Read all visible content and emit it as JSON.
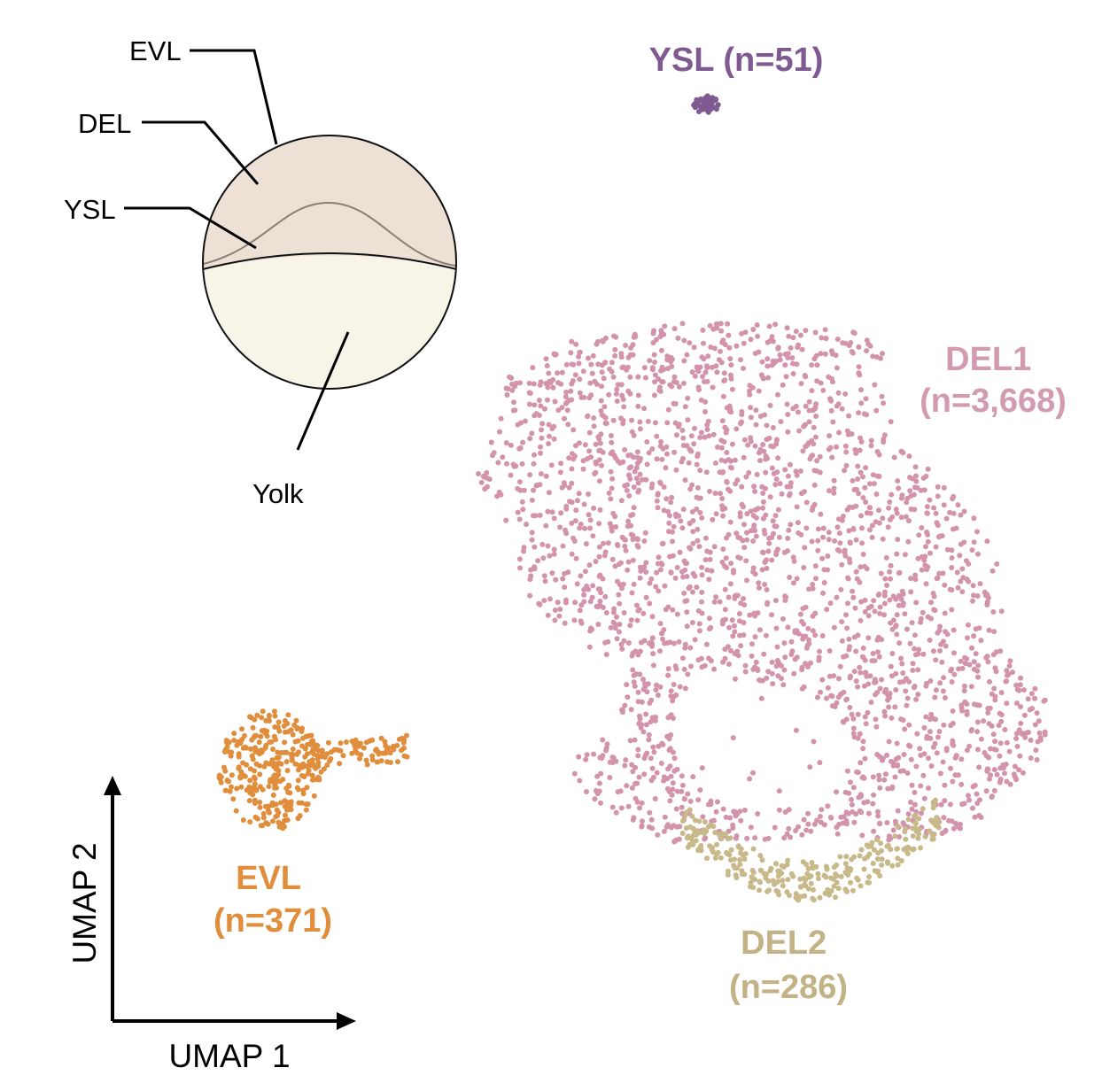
{
  "diagram": {
    "labels": {
      "evl": "EVL",
      "del": "DEL",
      "ysl": "YSL",
      "yolk": "Yolk"
    },
    "colors": {
      "blastoderm": "#ede0d4",
      "yolk": "#f7f4e8",
      "ysl_line": "#8a7f74",
      "outline": "#111111"
    }
  },
  "axes": {
    "xlabel": "UMAP 1",
    "ylabel": "UMAP 2"
  },
  "chart_data": {
    "type": "scatter",
    "xlabel": "UMAP 1",
    "ylabel": "UMAP 2",
    "grid": false,
    "series": [
      {
        "name": "DEL1",
        "count_label": "(n=3,668)",
        "n": 3668,
        "color": "#d394ab"
      },
      {
        "name": "DEL2",
        "count_label": "(n=286)",
        "n": 286,
        "color": "#c7b98a"
      },
      {
        "name": "EVL",
        "count_label": "(n=371)",
        "n": 371,
        "color": "#e08d3c"
      },
      {
        "name": "YSL",
        "count_label": "(n=51)",
        "n": 51,
        "color": "#7e5a91"
      }
    ],
    "label_colors": {
      "DEL1": "#d39bb0",
      "DEL2": "#c2b285",
      "EVL": "#e08d3c",
      "YSL": "#7e5a91"
    }
  }
}
